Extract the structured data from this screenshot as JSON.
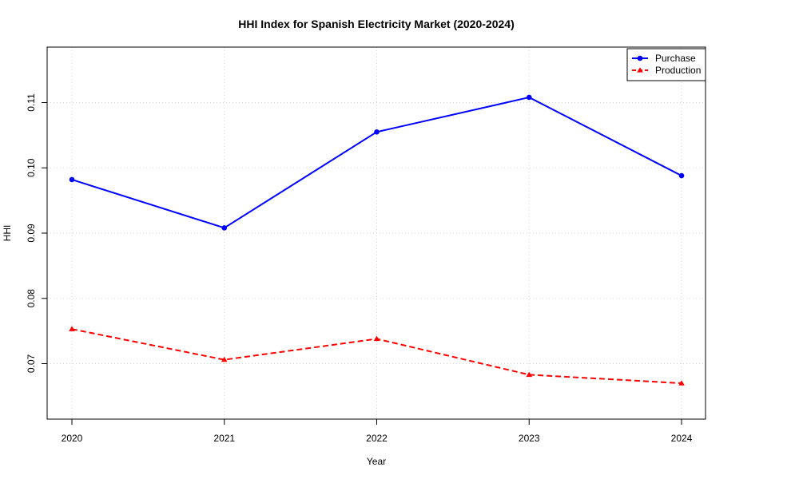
{
  "chart_data": {
    "type": "line",
    "title": "HHI Index for Spanish Electricity Market (2020-2024)",
    "xlabel": "Year",
    "ylabel": "HHI",
    "x": [
      "2020",
      "2021",
      "2022",
      "2023",
      "2024"
    ],
    "yticks": [
      "0.07",
      "0.08",
      "0.09",
      "0.10",
      "0.11"
    ],
    "ylim": [
      0.0615,
      0.1185
    ],
    "grid": true,
    "legend_position": "top-right",
    "series": [
      {
        "name": "Purchase",
        "values": [
          0.0982,
          0.0908,
          0.1055,
          0.1108,
          0.0988
        ],
        "color": "#0000ff",
        "marker": "circle",
        "line_style": "solid"
      },
      {
        "name": "Production",
        "values": [
          0.0753,
          0.0706,
          0.0738,
          0.0683,
          0.067
        ],
        "color": "#ff0000",
        "marker": "triangle",
        "line_style": "dashed"
      }
    ]
  }
}
